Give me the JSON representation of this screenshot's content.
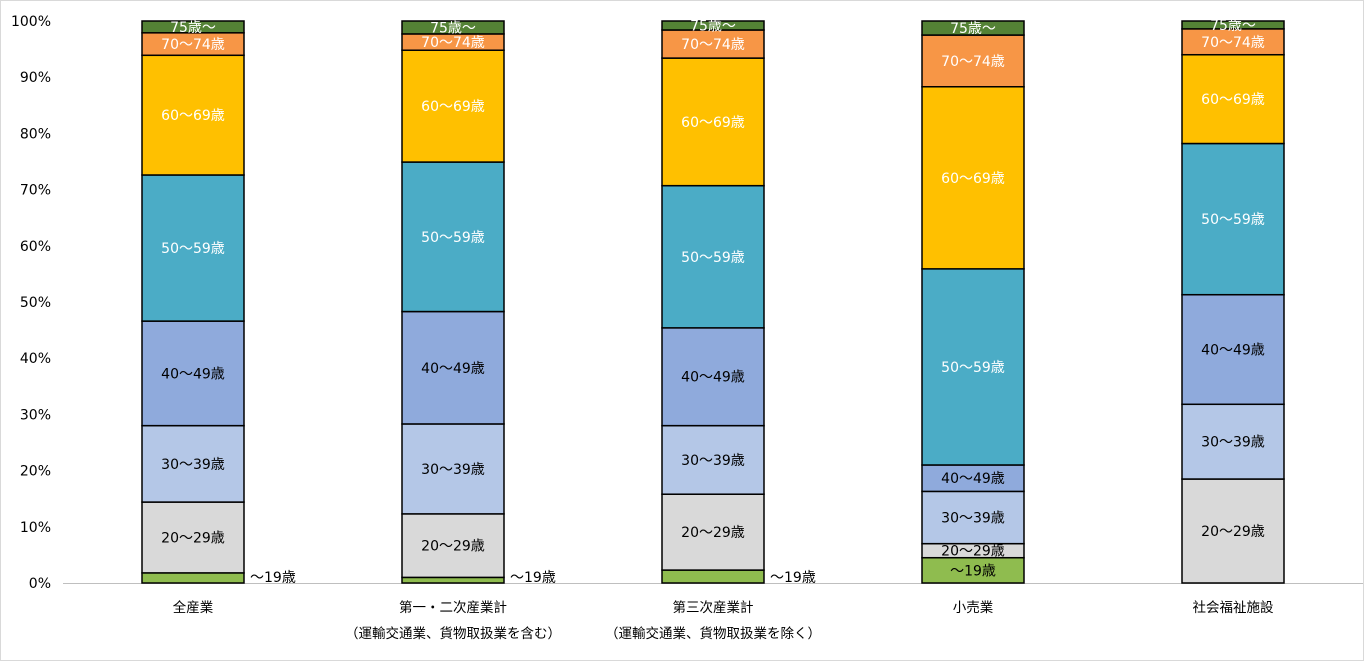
{
  "chart_data": {
    "type": "stacked-bar-100",
    "categories": [
      [
        "全産業"
      ],
      [
        "第一・二次産業計",
        "（運輸交通業、貨物取扱業を含む）"
      ],
      [
        "第三次産業計",
        "（運輸交通業、貨物取扱業を除く）"
      ],
      [
        "小売業"
      ],
      [
        "社会福祉施設"
      ]
    ],
    "ylim": [
      0,
      100
    ],
    "yticks": [
      "0%",
      "10%",
      "20%",
      "30%",
      "40%",
      "50%",
      "60%",
      "70%",
      "80%",
      "90%",
      "100%"
    ],
    "grid": false,
    "legend": "none",
    "series": [
      {
        "name": "～19歳",
        "color": "#8fbc4f",
        "label_color": "#000000",
        "label_outside": true,
        "values": [
          1.8,
          1.0,
          2.3,
          4.5,
          0.0
        ]
      },
      {
        "name": "20～29歳",
        "color": "#d9d9d9",
        "label_color": "#000000",
        "values": [
          12.6,
          11.3,
          13.5,
          2.5,
          18.5
        ]
      },
      {
        "name": "30～39歳",
        "color": "#b4c7e7",
        "label_color": "#000000",
        "values": [
          13.6,
          16.0,
          12.2,
          9.3,
          13.3
        ]
      },
      {
        "name": "40～49歳",
        "color": "#8faadc",
        "label_color": "#000000",
        "values": [
          18.6,
          20.0,
          17.4,
          4.7,
          19.5
        ]
      },
      {
        "name": "50～59歳",
        "color": "#4bacc6",
        "label_color": "#ffffff",
        "values": [
          26.0,
          26.6,
          25.3,
          34.9,
          26.9
        ]
      },
      {
        "name": "60～69歳",
        "color": "#ffc000",
        "label_color": "#ffffff",
        "values": [
          21.3,
          19.9,
          22.7,
          32.4,
          15.8
        ]
      },
      {
        "name": "70～74歳",
        "color": "#f79646",
        "label_color": "#ffffff",
        "values": [
          4.0,
          2.9,
          5.0,
          9.2,
          4.6
        ]
      },
      {
        "name": "75歳～",
        "color": "#548235",
        "label_color": "#ffffff",
        "values": [
          2.1,
          2.3,
          1.6,
          2.5,
          1.4
        ]
      }
    ]
  }
}
